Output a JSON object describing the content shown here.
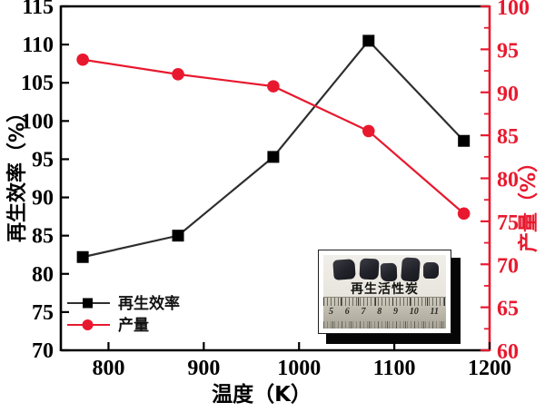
{
  "chart_data": {
    "type": "line",
    "title": "",
    "xlabel": "温度（K）",
    "ylabel_left": "再生效率（%）",
    "ylabel_right": "产量（%）",
    "xlim": [
      750,
      1200
    ],
    "xticks": [
      800,
      900,
      1000,
      1100,
      1200
    ],
    "ylim_left": [
      70,
      115
    ],
    "yticks_left": [
      70,
      75,
      80,
      85,
      90,
      95,
      100,
      105,
      110,
      115
    ],
    "ylim_right": [
      60,
      100
    ],
    "yticks_right": [
      60,
      65,
      70,
      75,
      80,
      85,
      90,
      95,
      100
    ],
    "yticks_right_minor": [
      62.5,
      67.5,
      72.5,
      77.5,
      82.5,
      87.5,
      92.5,
      97.5
    ],
    "x": [
      773,
      873,
      973,
      1073,
      1173
    ],
    "series": [
      {
        "name": "再生效率",
        "axis": "left",
        "marker": "square",
        "color": "#2e2e2e",
        "marker_color": "#000000",
        "values": [
          82.2,
          85.0,
          95.3,
          110.5,
          97.4
        ]
      },
      {
        "name": "产量",
        "axis": "right",
        "marker": "circle",
        "color": "#e8192e",
        "marker_color": "#e8192e",
        "values": [
          93.8,
          92.1,
          90.7,
          85.5,
          75.9
        ]
      }
    ],
    "legend": [
      "再生效率",
      "产量"
    ],
    "legend_position": "lower-left",
    "grid": false
  },
  "colors": {
    "accent_red": "#e8192e",
    "axis_black": "#000000"
  },
  "inset": {
    "label": "再生活性炭",
    "ruler_numbers": [
      "5",
      "6",
      "7",
      "8",
      "9",
      "10",
      "11"
    ],
    "sample_count": 5
  }
}
